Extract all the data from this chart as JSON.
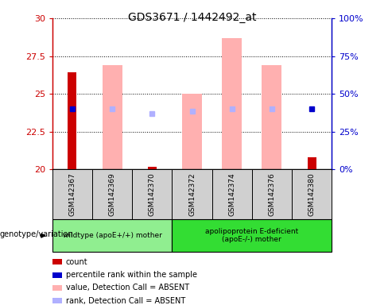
{
  "title": "GDS3671 / 1442492_at",
  "samples": [
    "GSM142367",
    "GSM142369",
    "GSM142370",
    "GSM142372",
    "GSM142374",
    "GSM142376",
    "GSM142380"
  ],
  "left_ylim": [
    20,
    30
  ],
  "left_yticks": [
    20,
    22.5,
    25,
    27.5,
    30
  ],
  "right_ylim": [
    0,
    100
  ],
  "right_yticks": [
    0,
    25,
    50,
    75,
    100
  ],
  "red_bars": {
    "GSM142367": [
      20,
      26.4
    ],
    "GSM142370": [
      20,
      20.15
    ],
    "GSM142380": [
      20,
      20.8
    ]
  },
  "pink_bars": {
    "GSM142369": [
      20,
      26.9
    ],
    "GSM142372": [
      20,
      25.0
    ],
    "GSM142374": [
      20,
      28.7
    ],
    "GSM142376": [
      20,
      26.9
    ]
  },
  "blue_squares": {
    "GSM142367": 24.0,
    "GSM142380": 24.0
  },
  "light_blue_squares": {
    "GSM142369": 24.0,
    "GSM142370": 23.7,
    "GSM142372": 23.85,
    "GSM142374": 24.0,
    "GSM142376": 24.0
  },
  "group1_count": 3,
  "group2_count": 4,
  "group1_label": "wildtype (apoE+/+) mother",
  "group2_label": "apolipoprotein E-deficient\n(apoE-/-) mother",
  "group1_color": "#90ee90",
  "group2_color": "#33dd33",
  "left_axis_color": "#cc0000",
  "right_axis_color": "#0000cc",
  "red_bar_width": 0.22,
  "pink_bar_width": 0.5,
  "legend_items": [
    {
      "color": "#cc0000",
      "label": "count"
    },
    {
      "color": "#0000cc",
      "label": "percentile rank within the sample"
    },
    {
      "color": "#ffb0b0",
      "label": "value, Detection Call = ABSENT"
    },
    {
      "color": "#b0b0ff",
      "label": "rank, Detection Call = ABSENT"
    }
  ]
}
